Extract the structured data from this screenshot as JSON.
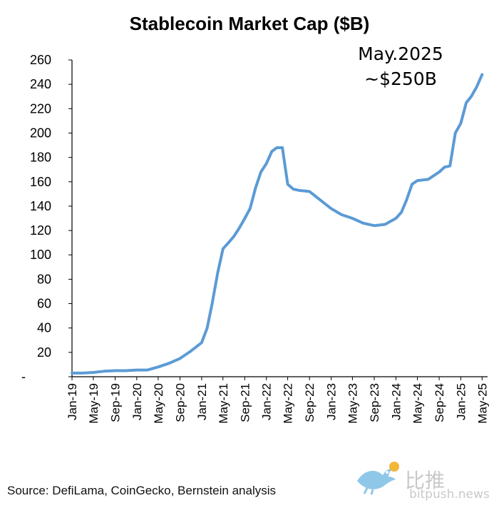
{
  "chart_data": {
    "type": "line",
    "title": "Stablecoin Market Cap ($B)",
    "xlabel": "",
    "ylabel": "",
    "ylim": [
      0,
      260
    ],
    "y_ticks": [
      "-",
      "20",
      "40",
      "60",
      "80",
      "100",
      "120",
      "140",
      "160",
      "180",
      "200",
      "220",
      "240",
      "260"
    ],
    "x_ticks": [
      "Jan-19",
      "May-19",
      "Sep-19",
      "Jan-20",
      "May-20",
      "Sep-20",
      "Jan-21",
      "May-21",
      "Sep-21",
      "Jan-22",
      "May-22",
      "Sep-22",
      "Jan-23",
      "May-23",
      "Sep-23",
      "Jan-24",
      "May-24",
      "Sep-24",
      "Jan-25",
      "May-25"
    ],
    "grid": false,
    "line_color": "#5b9bd5",
    "series": [
      {
        "x": [
          "2019-01",
          "2019-03",
          "2019-05",
          "2019-07",
          "2019-09",
          "2019-11",
          "2020-01",
          "2020-03",
          "2020-05",
          "2020-07",
          "2020-09",
          "2020-11",
          "2021-01",
          "2021-02",
          "2021-03",
          "2021-04",
          "2021-05",
          "2021-06",
          "2021-07",
          "2021-08",
          "2021-09",
          "2021-10",
          "2021-11",
          "2021-12",
          "2022-01",
          "2022-02",
          "2022-03",
          "2022-04",
          "2022-05",
          "2022-06",
          "2022-07",
          "2022-09",
          "2022-11",
          "2023-01",
          "2023-03",
          "2023-05",
          "2023-07",
          "2023-09",
          "2023-11",
          "2024-01",
          "2024-02",
          "2024-03",
          "2024-04",
          "2024-05",
          "2024-07",
          "2024-09",
          "2024-10",
          "2024-11",
          "2024-12",
          "2025-01",
          "2025-02",
          "2025-03",
          "2025-04",
          "2025-05"
        ],
        "values": [
          3,
          3,
          3.5,
          4.5,
          5,
          5,
          5.5,
          5.5,
          8,
          11,
          15,
          21,
          28,
          40,
          60,
          85,
          105,
          110,
          115,
          122,
          130,
          138,
          155,
          168,
          175,
          185,
          188,
          188,
          158,
          154,
          153,
          152,
          145,
          138,
          133,
          130,
          126,
          124,
          125,
          130,
          135,
          145,
          158,
          161,
          162,
          168,
          172,
          173,
          200,
          208,
          225,
          230,
          238,
          248
        ]
      }
    ],
    "annotations": [
      "May.2025",
      "~$250B"
    ],
    "source": "Source: DefiLama, CoinGecko, Bernstein analysis"
  },
  "watermark": {
    "text": "比推",
    "site": "bitpush.news",
    "icon": "bird-icon",
    "color": "#c9c9c9"
  }
}
